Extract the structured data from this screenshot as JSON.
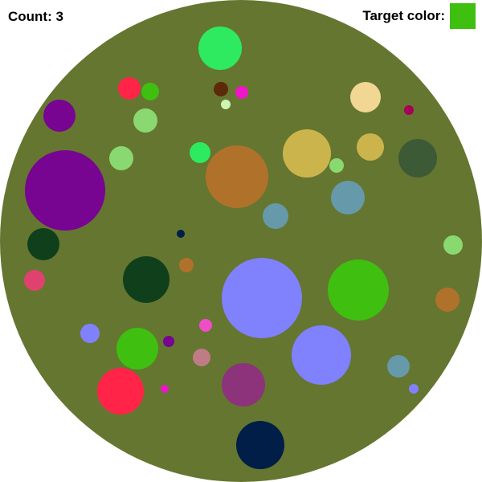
{
  "hud": {
    "count_label": "Count:",
    "count_value": 3,
    "target_label": "Target color:",
    "target_color": "#3fbf10"
  },
  "board": {
    "background_color": "#657630"
  },
  "circles": [
    {
      "id": "c1",
      "color": "#2eea60"
    },
    {
      "id": "c2",
      "color": "#ff2448"
    },
    {
      "id": "c3",
      "color": "#3fbf10"
    },
    {
      "id": "c4",
      "color": "#5c2a0a"
    },
    {
      "id": "c5",
      "color": "#ee16c8"
    },
    {
      "id": "c6",
      "color": "#cff5b2"
    },
    {
      "id": "c7",
      "color": "#f2d694"
    },
    {
      "id": "c8",
      "color": "#a6005a"
    },
    {
      "id": "c9",
      "color": "#780492"
    },
    {
      "id": "c10",
      "color": "#8ad870"
    },
    {
      "id": "c11",
      "color": "#8ad870"
    },
    {
      "id": "c12",
      "color": "#2eea60"
    },
    {
      "id": "c13",
      "color": "#b0722a"
    },
    {
      "id": "c14",
      "color": "#ccb44c"
    },
    {
      "id": "c15",
      "color": "#ccb44c"
    },
    {
      "id": "c16",
      "color": "#8ad870"
    },
    {
      "id": "c17",
      "color": "#3d5a36"
    },
    {
      "id": "c18",
      "color": "#780492"
    },
    {
      "id": "c19",
      "color": "#6699aa"
    },
    {
      "id": "c20",
      "color": "#6699aa"
    },
    {
      "id": "c21",
      "color": "#0f401b"
    },
    {
      "id": "c22",
      "color": "#001e48"
    },
    {
      "id": "c23",
      "color": "#8ad870"
    },
    {
      "id": "c24",
      "color": "#b0722a"
    },
    {
      "id": "c25",
      "color": "#df426e"
    },
    {
      "id": "c26",
      "color": "#0f401b"
    },
    {
      "id": "c27",
      "color": "#8081fc"
    },
    {
      "id": "c28",
      "color": "#3fbf10"
    },
    {
      "id": "c29",
      "color": "#b0722a"
    },
    {
      "id": "c30",
      "color": "#8081fc"
    },
    {
      "id": "c31",
      "color": "#ee4ec8"
    },
    {
      "id": "c32",
      "color": "#3fbf10"
    },
    {
      "id": "c33",
      "color": "#780492"
    },
    {
      "id": "c34",
      "color": "#c07c86"
    },
    {
      "id": "c35",
      "color": "#8081fc"
    },
    {
      "id": "c36",
      "color": "#8c337c"
    },
    {
      "id": "c37",
      "color": "#6699aa"
    },
    {
      "id": "c38",
      "color": "#ff2448"
    },
    {
      "id": "c39",
      "color": "#ee16c8"
    },
    {
      "id": "c40",
      "color": "#8081fc"
    },
    {
      "id": "c41",
      "color": "#001e48"
    }
  ]
}
